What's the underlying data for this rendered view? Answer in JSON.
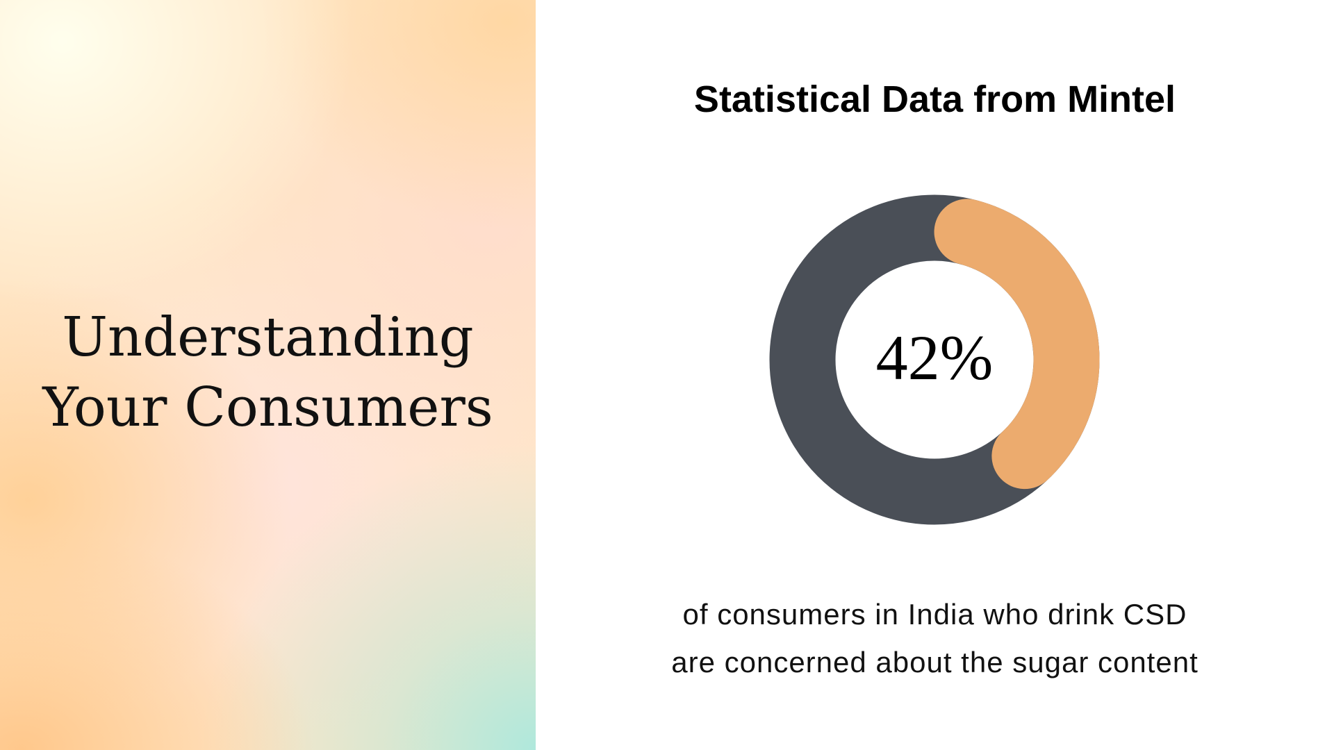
{
  "left_panel": {
    "title_line1": "Understanding",
    "title_line2": "Your Consumers"
  },
  "chart_title": "Statistical Data from Mintel",
  "chart_data": {
    "type": "pie",
    "style": "donut",
    "title": "Statistical Data from Mintel",
    "center_label": "42%",
    "slices": [
      {
        "value": 42,
        "color": "#ECAB6E"
      },
      {
        "value": 58,
        "color": "#4A4F57"
      }
    ]
  },
  "caption": {
    "line1": "of consumers in India who drink CSD",
    "line2": "are concerned about the sugar content"
  },
  "colors": {
    "highlight": "#ECAB6E",
    "track": "#4A4F57"
  }
}
